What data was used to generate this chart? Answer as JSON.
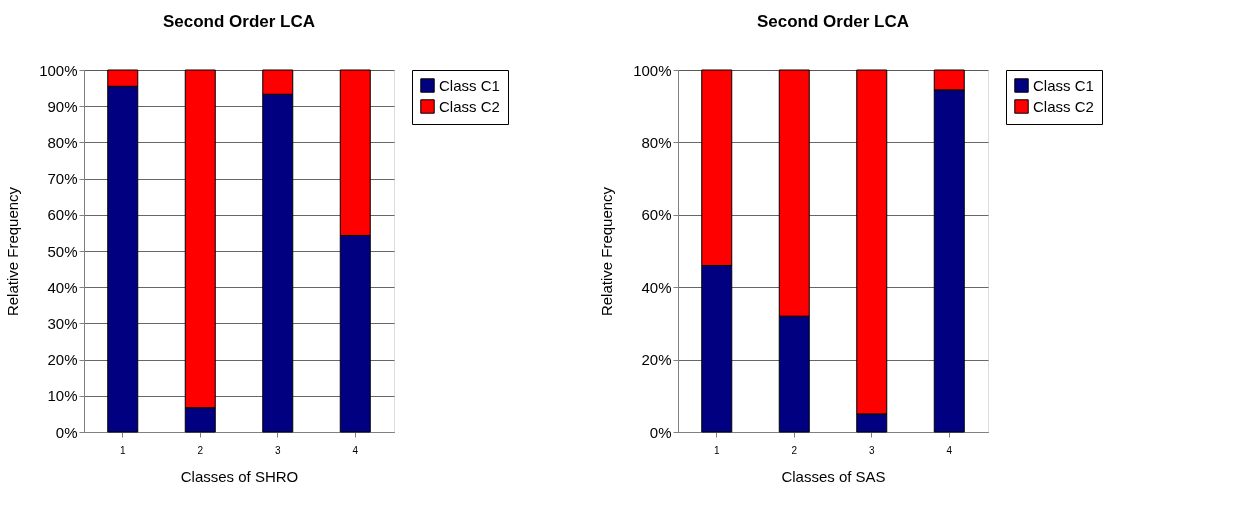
{
  "chart_data": [
    {
      "type": "bar",
      "title": "Second Order LCA",
      "xlabel": "Classes of SHRO",
      "ylabel": "Relative Frequency",
      "categories": [
        "1",
        "2",
        "3",
        "4"
      ],
      "stacked": true,
      "legend": "right",
      "grid": "y",
      "ylim": [
        0,
        100
      ],
      "yticks": [
        {
          "value": 0,
          "label": "0%"
        },
        {
          "value": 10,
          "label": "10%"
        },
        {
          "value": 20,
          "label": "20%"
        },
        {
          "value": 30,
          "label": "30%"
        },
        {
          "value": 40,
          "label": "40%"
        },
        {
          "value": 50,
          "label": "50%"
        },
        {
          "value": 60,
          "label": "60%"
        },
        {
          "value": 70,
          "label": "70%"
        },
        {
          "value": 80,
          "label": "80%"
        },
        {
          "value": 90,
          "label": "90%"
        },
        {
          "value": 100,
          "label": "100%"
        }
      ],
      "series": [
        {
          "name": "Class C1",
          "color": "#000080",
          "values": [
            95.5,
            6.7,
            93.3,
            54.3
          ]
        },
        {
          "name": "Class C2",
          "color": "#ff0000",
          "values": [
            4.5,
            93.3,
            6.7,
            45.7
          ]
        }
      ]
    },
    {
      "type": "bar",
      "title": "Second Order LCA",
      "xlabel": "Classes of SAS",
      "ylabel": "Relative Frequency",
      "categories": [
        "1",
        "2",
        "3",
        "4"
      ],
      "stacked": true,
      "legend": "right",
      "grid": "y",
      "ylim": [
        0,
        100
      ],
      "yticks": [
        {
          "value": 0,
          "label": "0%"
        },
        {
          "value": 20,
          "label": "20%"
        },
        {
          "value": 40,
          "label": "40%"
        },
        {
          "value": 60,
          "label": "60%"
        },
        {
          "value": 80,
          "label": "80%"
        },
        {
          "value": 100,
          "label": "100%"
        }
      ],
      "series": [
        {
          "name": "Class C1",
          "color": "#000080",
          "values": [
            46,
            32,
            5,
            94.5
          ]
        },
        {
          "name": "Class C2",
          "color": "#ff0000",
          "values": [
            54,
            68,
            95,
            5.5
          ]
        }
      ]
    }
  ]
}
